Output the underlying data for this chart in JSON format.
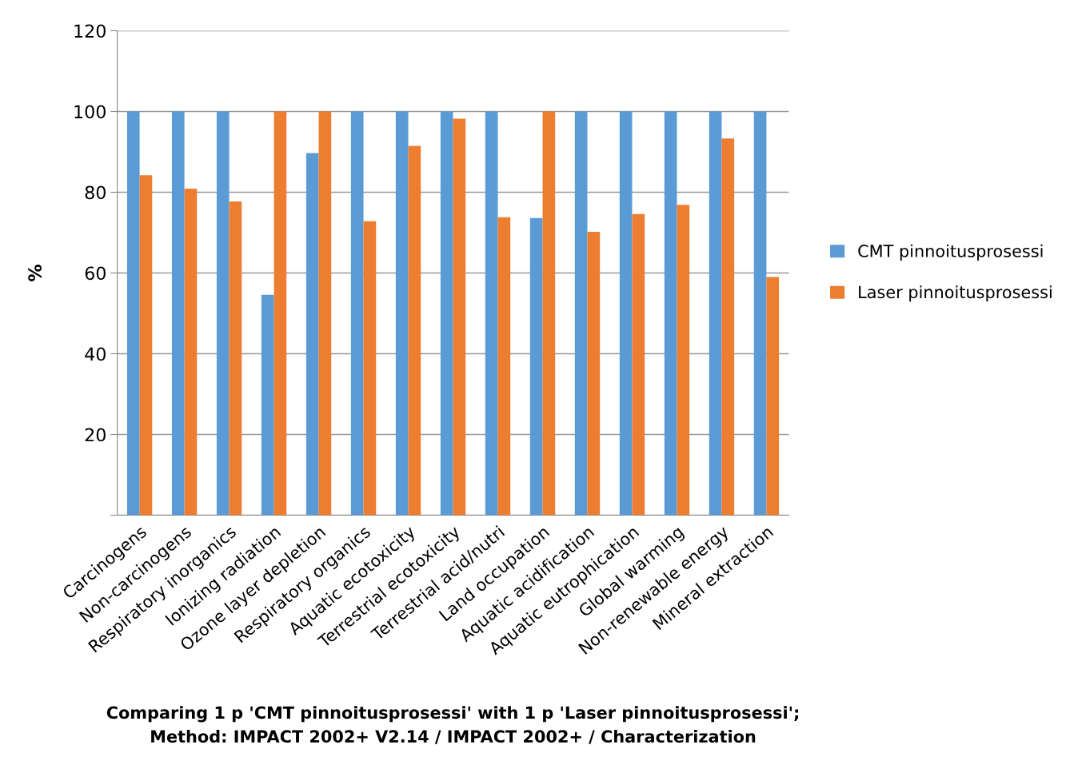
{
  "chart_data": {
    "type": "bar",
    "title": "Comparing 1 p 'CMT pinnoitusprosessi' with 1 p 'Laser pinnoitusprosessi';\nMethod: IMPACT 2002+ V2.14 / IMPACT 2002+ / Characterization",
    "ylabel": "%",
    "categories": [
      "Carcinogens",
      "Non-carcinogens",
      "Respiratory inorganics",
      "Ionizing radiation",
      "Ozone layer depletion",
      "Respiratory organics",
      "Aquatic ecotoxicity",
      "Terrestrial ecotoxicity",
      "Terrestrial acid/nutri",
      "Land occupation",
      "Aquatic acidification",
      "Aquatic eutrophication",
      "Global warming",
      "Non-renewable energy",
      "Mineral extraction"
    ],
    "series": [
      {
        "name": "CMT pinnoitusprosessi",
        "color": "#5b9bd5",
        "values": [
          100,
          100,
          100,
          54.6,
          89.7,
          100,
          100,
          100,
          100,
          73.6,
          100,
          100,
          100,
          100,
          100
        ]
      },
      {
        "name": "Laser pinnoitusprosessi",
        "color": "#ed7d31",
        "values": [
          84.2,
          80.9,
          77.7,
          100,
          100,
          72.8,
          91.5,
          98.2,
          73.8,
          100,
          70.2,
          74.6,
          76.9,
          93.3,
          59.0
        ]
      }
    ],
    "ylim": [
      0,
      120
    ],
    "yticks": [
      {
        "value": 0,
        "label": null
      },
      20,
      40,
      60,
      80,
      100,
      120
    ],
    "grid": "y",
    "legend": "right"
  }
}
